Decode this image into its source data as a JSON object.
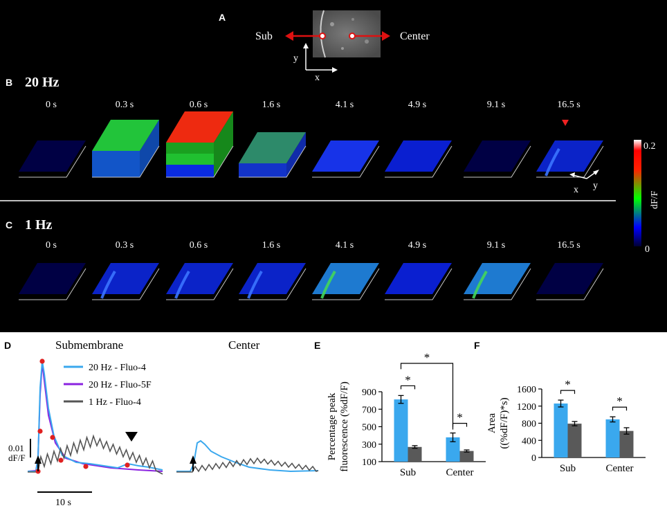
{
  "panel_a": {
    "letter": "A",
    "left_label": "Sub",
    "right_label": "Center",
    "axis_y": "y",
    "axis_x": "x"
  },
  "panel_b": {
    "letter": "B",
    "title": "20 Hz",
    "times": [
      "0 s",
      "0.3 s",
      "0.6 s",
      "1.6 s",
      "4.1 s",
      "4.9 s",
      "9.1 s",
      "16.5 s"
    ],
    "axis_x": "x",
    "axis_y": "y"
  },
  "panel_c": {
    "letter": "C",
    "title": "1 Hz",
    "times": [
      "0 s",
      "0.3 s",
      "0.6 s",
      "1.6 s",
      "4.1 s",
      "4.9 s",
      "9.1 s",
      "16.5 s"
    ]
  },
  "colorbar": {
    "label": "dF/F",
    "max_label": "0.2",
    "min_label": "0"
  },
  "panel_d": {
    "letter": "D",
    "title_left": "Submembrane",
    "title_right": "Center",
    "scale_y_value": "0.01",
    "scale_y_unit": "dF/F",
    "scale_x": "10 s",
    "legend": [
      {
        "label": "20 Hz - Fluo-4",
        "color": "#3aa8ee"
      },
      {
        "label": "20 Hz - Fluo-5F",
        "color": "#8a22e0"
      },
      {
        "label": "1 Hz - Fluo-4",
        "color": "#555555"
      }
    ]
  },
  "chart_data": [
    {
      "type": "bar",
      "panel": "E",
      "ylabel": "Percentage peak fluorescence (%dF/F)",
      "ylabel_lines": [
        "Percentage peak",
        "fluorescence (%dF/F)"
      ],
      "categories": [
        "Sub",
        "Center"
      ],
      "ylim": [
        100,
        900
      ],
      "yticks": [
        "100",
        "300",
        "500",
        "700",
        "900"
      ],
      "series": [
        {
          "name": "20 Hz",
          "color": "#3aa8ee",
          "values": [
            812,
            378
          ],
          "errors": [
            45,
            50
          ]
        },
        {
          "name": "1 Hz",
          "color": "#595959",
          "values": [
            268,
            222
          ],
          "errors": [
            15,
            12
          ]
        }
      ],
      "significance": [
        "*",
        "*",
        "*"
      ]
    },
    {
      "type": "bar",
      "panel": "F",
      "ylabel": "Area ((%dF/F)*s)",
      "ylabel_lines": [
        "Area",
        "((%dF/F)*s)"
      ],
      "categories": [
        "Sub",
        "Center"
      ],
      "ylim": [
        0,
        1600
      ],
      "yticks": [
        "0",
        "400",
        "800",
        "1200",
        "1600"
      ],
      "series": [
        {
          "name": "20 Hz",
          "color": "#3aa8ee",
          "values": [
            1260,
            890
          ],
          "errors": [
            80,
            60
          ]
        },
        {
          "name": "1 Hz",
          "color": "#595959",
          "values": [
            790,
            620
          ],
          "errors": [
            50,
            75
          ]
        }
      ],
      "significance": [
        "*",
        "*"
      ]
    }
  ]
}
